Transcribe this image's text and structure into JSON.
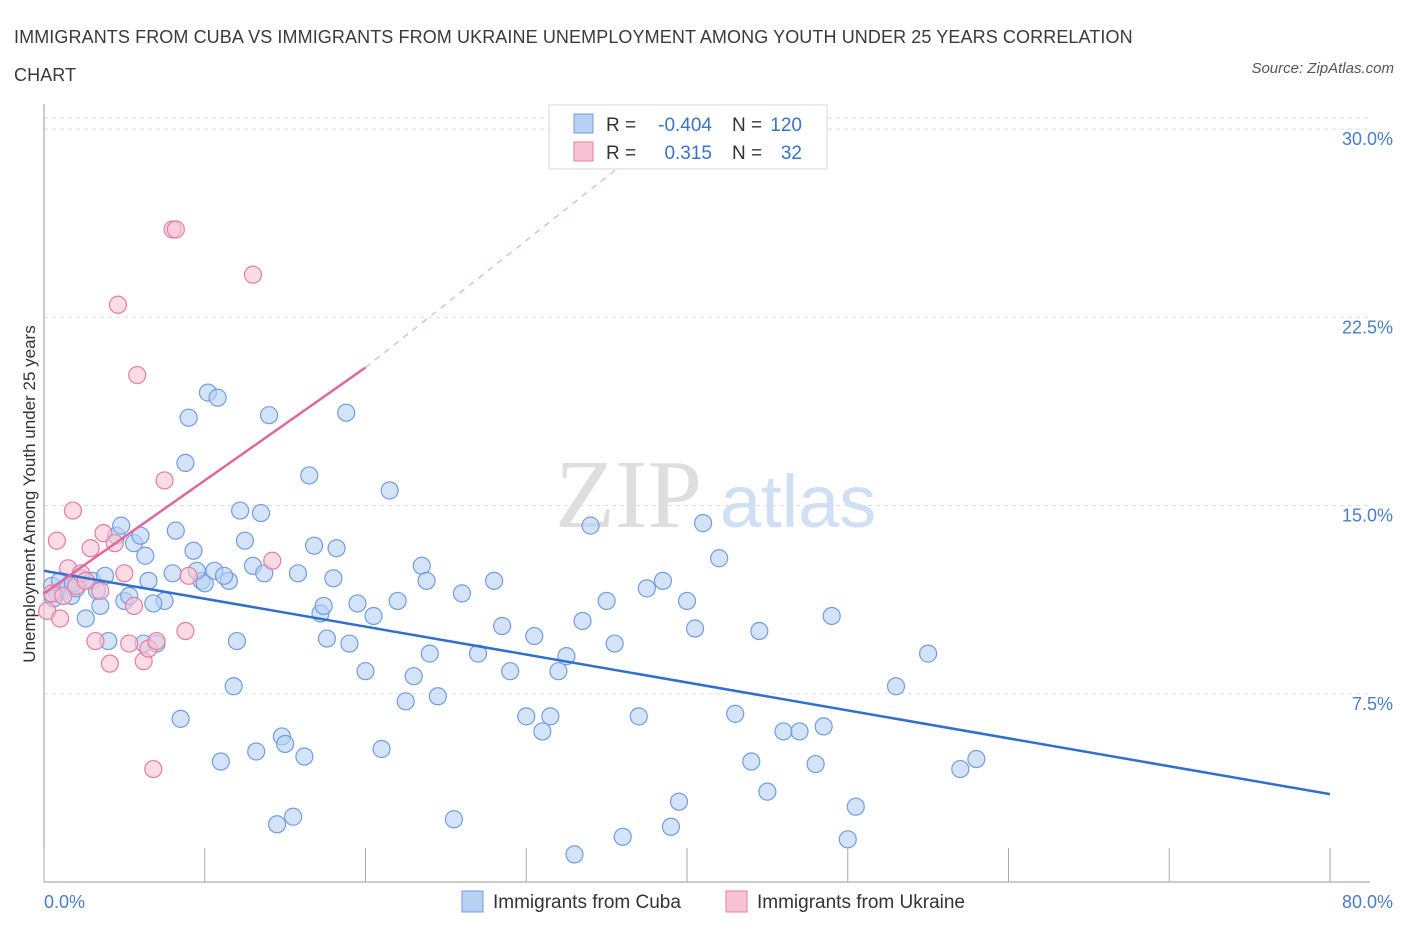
{
  "title": "IMMIGRANTS FROM CUBA VS IMMIGRANTS FROM UKRAINE UNEMPLOYMENT AMONG YOUTH UNDER 25 YEARS CORRELATION CHART",
  "source": "Source: ZipAtlas.com",
  "watermark": {
    "zip": "ZIP",
    "atlas": "atlas"
  },
  "colors": {
    "cuba": "#6f9ee0",
    "cuba_fill": "#b8d0f3",
    "ukraine": "#e87ba3",
    "ukraine_fill": "#f8c3d5",
    "blue_line": "#2f6fd0",
    "pink_line": "#e0679a"
  },
  "legend": {
    "rows": [
      {
        "r_label": "R =",
        "r_value": "-0.404",
        "n_label": "N =",
        "n_value": "120"
      },
      {
        "r_label": "R =",
        "r_value": "0.315",
        "n_label": "N =",
        "n_value": "32"
      }
    ]
  },
  "bottom_legend": [
    "Immigrants from Cuba",
    "Immigrants from Ukraine"
  ],
  "chart_data": {
    "type": "scatter",
    "title": "IMMIGRANTS FROM CUBA VS IMMIGRANTS FROM UKRAINE UNEMPLOYMENT AMONG YOUTH UNDER 25 YEARS CORRELATION CHART",
    "xlabel": "",
    "ylabel": "Unemployment Among Youth under 25 years",
    "xlim": [
      0,
      80
    ],
    "ylim": [
      0,
      31
    ],
    "x_tick_labels": [
      "0.0%",
      "80.0%"
    ],
    "y_ticks": [
      7.5,
      15.0,
      22.5,
      30.0
    ],
    "y_tick_labels": [
      "7.5%",
      "15.0%",
      "22.5%",
      "30.0%"
    ],
    "series": [
      {
        "name": "Immigrants from Cuba",
        "R": -0.404,
        "N": 120,
        "trend": {
          "x": [
            0,
            80
          ],
          "y": [
            12.4,
            3.5
          ]
        },
        "points": [
          [
            0.5,
            11.8
          ],
          [
            0.8,
            11.5
          ],
          [
            1.0,
            12.0
          ],
          [
            1.2,
            11.6
          ],
          [
            1.5,
            11.8
          ],
          [
            1.7,
            11.4
          ],
          [
            2.0,
            11.7
          ],
          [
            2.3,
            12.1
          ],
          [
            2.6,
            10.5
          ],
          [
            3.0,
            12.0
          ],
          [
            3.3,
            11.6
          ],
          [
            3.8,
            12.2
          ],
          [
            4.0,
            9.6
          ],
          [
            4.5,
            13.8
          ],
          [
            4.8,
            14.2
          ],
          [
            5.0,
            11.2
          ],
          [
            5.3,
            11.4
          ],
          [
            5.6,
            13.5
          ],
          [
            6.0,
            13.8
          ],
          [
            6.2,
            9.5
          ],
          [
            6.5,
            12.0
          ],
          [
            7.0,
            9.5
          ],
          [
            7.5,
            11.2
          ],
          [
            8.0,
            12.3
          ],
          [
            8.2,
            14.0
          ],
          [
            8.5,
            6.5
          ],
          [
            8.8,
            16.7
          ],
          [
            9.0,
            18.5
          ],
          [
            9.3,
            13.2
          ],
          [
            9.8,
            12.0
          ],
          [
            10.0,
            11.9
          ],
          [
            10.2,
            19.5
          ],
          [
            10.6,
            12.4
          ],
          [
            10.8,
            19.3
          ],
          [
            11.0,
            4.8
          ],
          [
            11.5,
            12.0
          ],
          [
            11.8,
            7.8
          ],
          [
            12.0,
            9.6
          ],
          [
            12.2,
            14.8
          ],
          [
            12.5,
            13.6
          ],
          [
            13.0,
            12.6
          ],
          [
            13.2,
            5.2
          ],
          [
            13.5,
            14.7
          ],
          [
            14.0,
            18.6
          ],
          [
            14.5,
            2.3
          ],
          [
            14.8,
            5.8
          ],
          [
            15.0,
            5.5
          ],
          [
            15.5,
            2.6
          ],
          [
            15.8,
            12.3
          ],
          [
            16.2,
            5.0
          ],
          [
            16.5,
            16.2
          ],
          [
            16.8,
            13.4
          ],
          [
            17.2,
            10.7
          ],
          [
            17.6,
            9.7
          ],
          [
            18.0,
            12.1
          ],
          [
            18.2,
            13.3
          ],
          [
            18.8,
            18.7
          ],
          [
            19.0,
            9.5
          ],
          [
            19.5,
            11.1
          ],
          [
            20.0,
            8.4
          ],
          [
            21.0,
            5.3
          ],
          [
            21.5,
            15.6
          ],
          [
            22.0,
            11.2
          ],
          [
            22.5,
            7.2
          ],
          [
            23.0,
            8.2
          ],
          [
            23.5,
            12.6
          ],
          [
            24.0,
            9.1
          ],
          [
            24.5,
            7.4
          ],
          [
            25.5,
            2.5
          ],
          [
            27.0,
            9.1
          ],
          [
            28.0,
            12.0
          ],
          [
            29.0,
            8.4
          ],
          [
            30.0,
            6.6
          ],
          [
            31.0,
            6.0
          ],
          [
            31.5,
            6.6
          ],
          [
            32.0,
            8.4
          ],
          [
            32.5,
            9.0
          ],
          [
            33.0,
            1.1
          ],
          [
            34.0,
            14.2
          ],
          [
            35.0,
            11.2
          ],
          [
            36.0,
            1.8
          ],
          [
            37.0,
            6.6
          ],
          [
            37.5,
            11.7
          ],
          [
            38.5,
            12.0
          ],
          [
            39.0,
            2.2
          ],
          [
            39.5,
            3.2
          ],
          [
            40.0,
            11.2
          ],
          [
            41.0,
            14.3
          ],
          [
            42.0,
            12.9
          ],
          [
            43.0,
            6.7
          ],
          [
            44.0,
            4.8
          ],
          [
            45.0,
            3.6
          ],
          [
            46.0,
            6.0
          ],
          [
            47.0,
            6.0
          ],
          [
            48.0,
            4.7
          ],
          [
            48.5,
            6.2
          ],
          [
            49.0,
            10.6
          ],
          [
            50.0,
            1.7
          ],
          [
            50.5,
            3.0
          ],
          [
            53.0,
            7.8
          ],
          [
            55.0,
            9.1
          ],
          [
            57.0,
            4.5
          ],
          [
            58.0,
            4.9
          ],
          [
            0.6,
            11.3
          ],
          [
            1.8,
            11.9
          ],
          [
            6.8,
            11.1
          ],
          [
            23.8,
            12.0
          ],
          [
            17.4,
            11.0
          ],
          [
            11.2,
            12.2
          ],
          [
            9.5,
            12.4
          ],
          [
            26.0,
            11.5
          ],
          [
            3.5,
            11.0
          ],
          [
            13.7,
            12.3
          ],
          [
            20.5,
            10.6
          ],
          [
            28.5,
            10.2
          ],
          [
            33.5,
            10.4
          ],
          [
            40.5,
            10.1
          ],
          [
            44.5,
            10.0
          ],
          [
            6.3,
            13.0
          ],
          [
            30.5,
            9.8
          ],
          [
            35.5,
            9.5
          ]
        ]
      },
      {
        "name": "Immigrants from Ukraine",
        "R": 0.315,
        "N": 32,
        "trend": {
          "x": [
            0,
            20
          ],
          "y": [
            11.5,
            20.5
          ]
        },
        "trend_extension": {
          "x": [
            20,
            36
          ],
          "y": [
            20.5,
            28.6
          ]
        },
        "points": [
          [
            0.2,
            10.8
          ],
          [
            0.5,
            11.5
          ],
          [
            0.8,
            13.6
          ],
          [
            1.0,
            10.5
          ],
          [
            1.2,
            11.4
          ],
          [
            1.5,
            12.5
          ],
          [
            1.8,
            14.8
          ],
          [
            2.0,
            11.8
          ],
          [
            2.3,
            12.3
          ],
          [
            2.6,
            12.0
          ],
          [
            2.9,
            13.3
          ],
          [
            3.2,
            9.6
          ],
          [
            3.5,
            11.6
          ],
          [
            3.7,
            13.9
          ],
          [
            4.1,
            8.7
          ],
          [
            4.4,
            13.5
          ],
          [
            4.6,
            23.0
          ],
          [
            5.0,
            12.3
          ],
          [
            5.3,
            9.5
          ],
          [
            5.6,
            11.0
          ],
          [
            5.8,
            20.2
          ],
          [
            6.2,
            8.8
          ],
          [
            6.5,
            9.3
          ],
          [
            6.8,
            4.5
          ],
          [
            7.0,
            9.6
          ],
          [
            7.5,
            16.0
          ],
          [
            8.0,
            26.0
          ],
          [
            8.2,
            26.0
          ],
          [
            8.8,
            10.0
          ],
          [
            9.0,
            12.2
          ],
          [
            13.0,
            24.2
          ],
          [
            14.2,
            12.8
          ]
        ]
      }
    ]
  }
}
